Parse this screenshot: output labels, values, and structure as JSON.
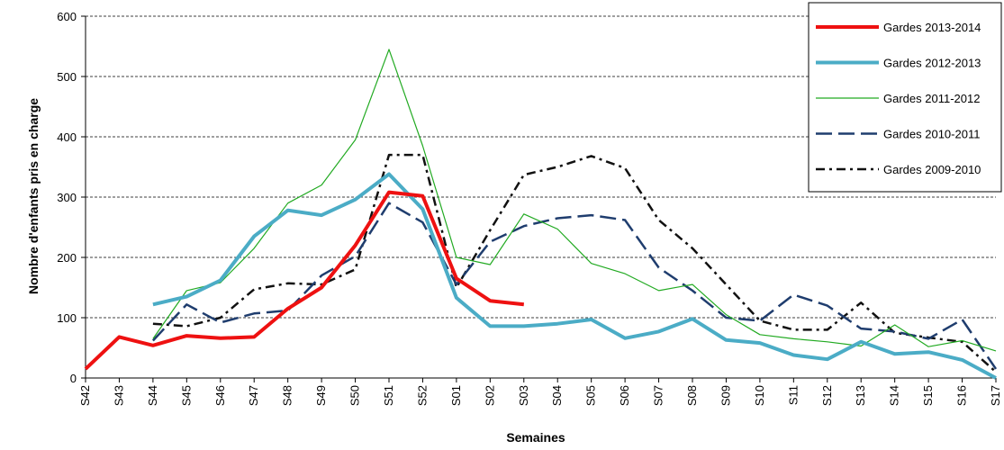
{
  "chart_data": {
    "type": "line",
    "title": "",
    "xlabel": "Semaines",
    "ylabel": "Nombre d'enfants  pris en charge",
    "ylim": [
      0,
      600
    ],
    "yticks": [
      0,
      100,
      200,
      300,
      400,
      500,
      600
    ],
    "grid": true,
    "legend_position": "top-right",
    "categories": [
      "S42",
      "S43",
      "S44",
      "S45",
      "S46",
      "S47",
      "S48",
      "S49",
      "S50",
      "S51",
      "S52",
      "S01",
      "S02",
      "S03",
      "S04",
      "S05",
      "S06",
      "S07",
      "S08",
      "S09",
      "S10",
      "S11",
      "S12",
      "S13",
      "S14",
      "S15",
      "S16",
      "S17"
    ],
    "series": [
      {
        "name": "Gardes 2013-2014",
        "color": "#ee1111",
        "style": "solid-thick",
        "values": [
          15,
          68,
          54,
          70,
          66,
          68,
          115,
          150,
          220,
          308,
          302,
          165,
          128,
          122,
          null,
          null,
          null,
          null,
          null,
          null,
          null,
          null,
          null,
          null,
          null,
          null,
          null,
          null
        ]
      },
      {
        "name": "Gardes 2012-2013",
        "color": "#4bacc6",
        "style": "solid-thick",
        "values": [
          null,
          null,
          122,
          135,
          162,
          235,
          278,
          270,
          296,
          338,
          280,
          133,
          86,
          86,
          90,
          97,
          66,
          77,
          98,
          63,
          58,
          38,
          31,
          60,
          40,
          43,
          30,
          0
        ]
      },
      {
        "name": "Gardes 2011-2012",
        "color": "#22aa22",
        "style": "solid-thin",
        "values": [
          null,
          null,
          65,
          145,
          158,
          215,
          290,
          320,
          395,
          545,
          385,
          200,
          188,
          272,
          247,
          190,
          173,
          145,
          155,
          105,
          72,
          65,
          60,
          53,
          88,
          52,
          62,
          45
        ]
      },
      {
        "name": "Gardes 2010-2011",
        "color": "#1f3d6e",
        "style": "dashed",
        "values": [
          null,
          null,
          62,
          122,
          92,
          107,
          112,
          170,
          202,
          290,
          258,
          155,
          226,
          252,
          265,
          270,
          262,
          183,
          145,
          100,
          95,
          138,
          120,
          82,
          77,
          65,
          97,
          15
        ]
      },
      {
        "name": "Gardes 2009-2010",
        "color": "#111111",
        "style": "dash-dot",
        "values": [
          null,
          null,
          90,
          86,
          100,
          147,
          157,
          155,
          180,
          370,
          370,
          150,
          245,
          337,
          350,
          368,
          348,
          262,
          215,
          155,
          95,
          80,
          80,
          125,
          75,
          67,
          60,
          10
        ]
      }
    ]
  }
}
